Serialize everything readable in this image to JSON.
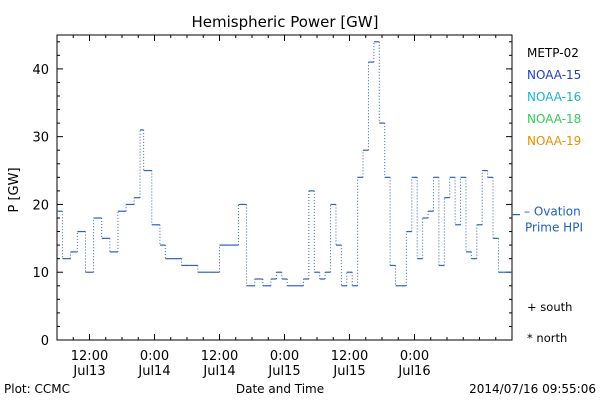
{
  "chart_data": {
    "type": "line",
    "title": "Hemispheric Power [GW]",
    "ylabel": "P [GW]",
    "xlabel": "Date and Time",
    "ylim": [
      0,
      45
    ],
    "y_ticks": [
      0,
      10,
      20,
      30,
      40
    ],
    "x_range": [
      "2014-07-13 06:00",
      "2014-07-16 18:00"
    ],
    "x_ticks": [
      {
        "time": "2014-07-13 12:00",
        "line1": "12:00",
        "line2": "Jul13"
      },
      {
        "time": "2014-07-14 00:00",
        "line1": "0:00",
        "line2": "Jul14"
      },
      {
        "time": "2014-07-14 12:00",
        "line1": "12:00",
        "line2": "Jul14"
      },
      {
        "time": "2014-07-15 00:00",
        "line1": "0:00",
        "line2": "Jul15"
      },
      {
        "time": "2014-07-15 12:00",
        "line1": "12:00",
        "line2": "Jul15"
      },
      {
        "time": "2014-07-16 00:00",
        "line1": "0:00",
        "line2": "Jul16"
      }
    ],
    "legend": [
      {
        "name": "METP-02",
        "color": "#000000"
      },
      {
        "name": "NOAA-15",
        "color": "#1f3fbf"
      },
      {
        "name": "NOAA-16",
        "color": "#19b3d6"
      },
      {
        "name": "NOAA-18",
        "color": "#33cc55"
      },
      {
        "name": "NOAA-19",
        "color": "#f08c00"
      }
    ],
    "legend_placement": "right",
    "ovation_label_line1": "– Ovation",
    "ovation_label_line2": "Prime HPI",
    "ovation_value": 18.5,
    "ovation_color": "#1f5fbf",
    "marker_south": "+ south",
    "marker_north": "* north",
    "series_color": "#3060c0",
    "series": [
      {
        "name": "Ovation Prime HPI",
        "style": "step-dotted",
        "x": [
          "2014-07-13 06:00",
          "2014-07-13 07:00",
          "2014-07-13 08:30",
          "2014-07-13 09:45",
          "2014-07-13 11:15",
          "2014-07-13 12:45",
          "2014-07-13 14:15",
          "2014-07-13 15:45",
          "2014-07-13 17:15",
          "2014-07-13 18:45",
          "2014-07-13 20:15",
          "2014-07-13 21:20",
          "2014-07-13 22:00",
          "2014-07-13 23:30",
          "2014-07-14 01:00",
          "2014-07-14 02:00",
          "2014-07-14 03:30",
          "2014-07-14 05:00",
          "2014-07-14 06:30",
          "2014-07-14 08:00",
          "2014-07-14 10:00",
          "2014-07-14 12:00",
          "2014-07-14 14:00",
          "2014-07-14 15:30",
          "2014-07-14 17:00",
          "2014-07-14 18:30",
          "2014-07-14 20:00",
          "2014-07-14 21:30",
          "2014-07-14 22:30",
          "2014-07-14 23:30",
          "2014-07-15 00:30",
          "2014-07-15 01:30",
          "2014-07-15 02:30",
          "2014-07-15 03:30",
          "2014-07-15 04:30",
          "2014-07-15 05:30",
          "2014-07-15 06:30",
          "2014-07-15 07:30",
          "2014-07-15 08:30",
          "2014-07-15 09:30",
          "2014-07-15 10:30",
          "2014-07-15 11:30",
          "2014-07-15 12:30",
          "2014-07-15 13:30",
          "2014-07-15 14:30",
          "2014-07-15 15:30",
          "2014-07-15 16:30",
          "2014-07-15 17:30",
          "2014-07-15 18:30",
          "2014-07-15 19:30",
          "2014-07-15 20:30",
          "2014-07-15 21:30",
          "2014-07-15 22:30",
          "2014-07-15 23:30",
          "2014-07-16 00:30",
          "2014-07-16 01:30",
          "2014-07-16 02:30",
          "2014-07-16 03:30",
          "2014-07-16 04:30",
          "2014-07-16 05:30",
          "2014-07-16 06:30",
          "2014-07-16 07:30",
          "2014-07-16 08:30",
          "2014-07-16 09:30",
          "2014-07-16 10:30",
          "2014-07-16 11:30",
          "2014-07-16 12:30",
          "2014-07-16 13:30",
          "2014-07-16 14:30",
          "2014-07-16 15:30",
          "2014-07-16 16:30",
          "2014-07-16 17:30",
          "2014-07-16 18:00"
        ],
        "y": [
          19,
          12,
          13,
          16,
          10,
          18,
          15,
          13,
          19,
          20,
          21,
          31,
          25,
          17,
          14,
          12,
          12,
          11,
          11,
          10,
          10,
          14,
          14,
          20,
          8,
          9,
          8,
          9,
          10,
          9,
          8,
          8,
          8,
          9,
          22,
          10,
          9,
          10,
          20,
          14,
          8,
          10,
          8,
          24,
          28,
          41,
          44,
          32,
          24,
          11,
          8,
          8,
          16,
          24,
          12,
          18,
          19,
          24,
          11,
          21,
          24,
          17,
          24,
          13,
          12,
          17,
          25,
          24,
          15,
          10,
          10,
          10,
          10
        ]
      }
    ]
  },
  "footer": {
    "plot_credit": "Plot: CCMC",
    "timestamp": "2014/07/16 09:55:06"
  }
}
